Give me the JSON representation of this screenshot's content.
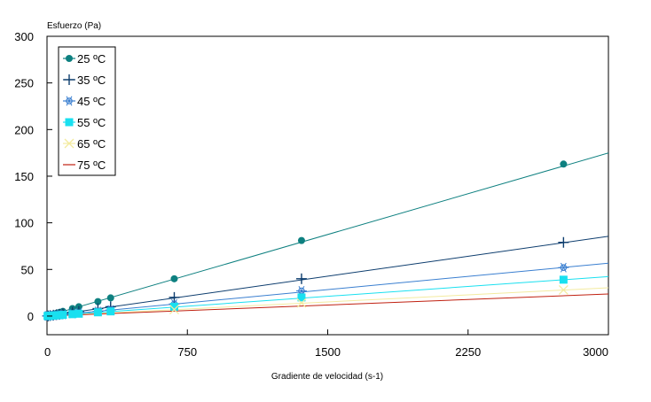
{
  "chart_data": {
    "type": "scatter",
    "title": "",
    "xlabel": "Gradiente de velocidad (s-1)",
    "ylabel": "Esfuerzo (Pa)",
    "xlim": [
      0,
      3000
    ],
    "ylim": [
      -20,
      300
    ],
    "x_ticks": [
      0,
      750,
      1500,
      2250,
      3000
    ],
    "y_ticks": [
      0,
      50,
      100,
      150,
      200,
      250,
      300
    ],
    "grid": false,
    "legend_position": "top-left",
    "series": [
      {
        "name": "25 ºC",
        "color": "#0e8080",
        "marker": "circle",
        "points": [
          [
            3,
            0.2
          ],
          [
            7,
            0.5
          ],
          [
            17,
            1.0
          ],
          [
            34,
            2.0
          ],
          [
            51,
            3.0
          ],
          [
            68,
            4.0
          ],
          [
            85,
            5.0
          ],
          [
            136,
            8.0
          ],
          [
            170,
            10.0
          ],
          [
            272,
            15.5
          ],
          [
            340,
            19.5
          ],
          [
            680,
            40.0
          ],
          [
            1360,
            81.0
          ],
          [
            2760,
            163.0
          ]
        ],
        "fit_slope": 0.0583
      },
      {
        "name": "35 ºC",
        "color": "#0d3d6e",
        "marker": "plus",
        "points": [
          [
            3,
            0.1
          ],
          [
            7,
            0.2
          ],
          [
            17,
            0.5
          ],
          [
            34,
            1.0
          ],
          [
            51,
            1.5
          ],
          [
            68,
            2.0
          ],
          [
            85,
            2.5
          ],
          [
            136,
            4.0
          ],
          [
            170,
            5.0
          ],
          [
            272,
            8.0
          ],
          [
            340,
            10.0
          ],
          [
            680,
            20.0
          ],
          [
            1360,
            40.0
          ],
          [
            2760,
            79.0
          ]
        ],
        "fit_slope": 0.0285
      },
      {
        "name": "45 ºC",
        "color": "#3a7fd0",
        "marker": "star",
        "points": [
          [
            3,
            0.1
          ],
          [
            7,
            0.2
          ],
          [
            17,
            0.4
          ],
          [
            34,
            0.7
          ],
          [
            51,
            1.0
          ],
          [
            68,
            1.4
          ],
          [
            85,
            1.7
          ],
          [
            136,
            2.7
          ],
          [
            170,
            3.4
          ],
          [
            272,
            5.0
          ],
          [
            340,
            6.5
          ],
          [
            680,
            13.0
          ],
          [
            1360,
            27.0
          ],
          [
            2760,
            52.0
          ]
        ],
        "fit_slope": 0.0189
      },
      {
        "name": "55 ºC",
        "color": "#19e0f0",
        "marker": "square",
        "points": [
          [
            3,
            0.1
          ],
          [
            7,
            0.1
          ],
          [
            17,
            0.3
          ],
          [
            34,
            0.5
          ],
          [
            51,
            0.8
          ],
          [
            68,
            1.0
          ],
          [
            85,
            1.3
          ],
          [
            136,
            2.0
          ],
          [
            170,
            2.5
          ],
          [
            272,
            4.0
          ],
          [
            340,
            5.0
          ],
          [
            680,
            10.0
          ],
          [
            1360,
            20.0
          ],
          [
            2760,
            39.0
          ]
        ],
        "fit_slope": 0.0141
      },
      {
        "name": "65 ºC",
        "color": "#f3eba0",
        "marker": "cross",
        "points": [
          [
            680,
            7.0
          ],
          [
            1360,
            14.0
          ],
          [
            2760,
            28.0
          ]
        ],
        "fit_slope": 0.0101
      },
      {
        "name": "75 ºC",
        "color": "#c02010",
        "marker": "none",
        "points": [],
        "fit_slope": 0.0079
      }
    ]
  }
}
